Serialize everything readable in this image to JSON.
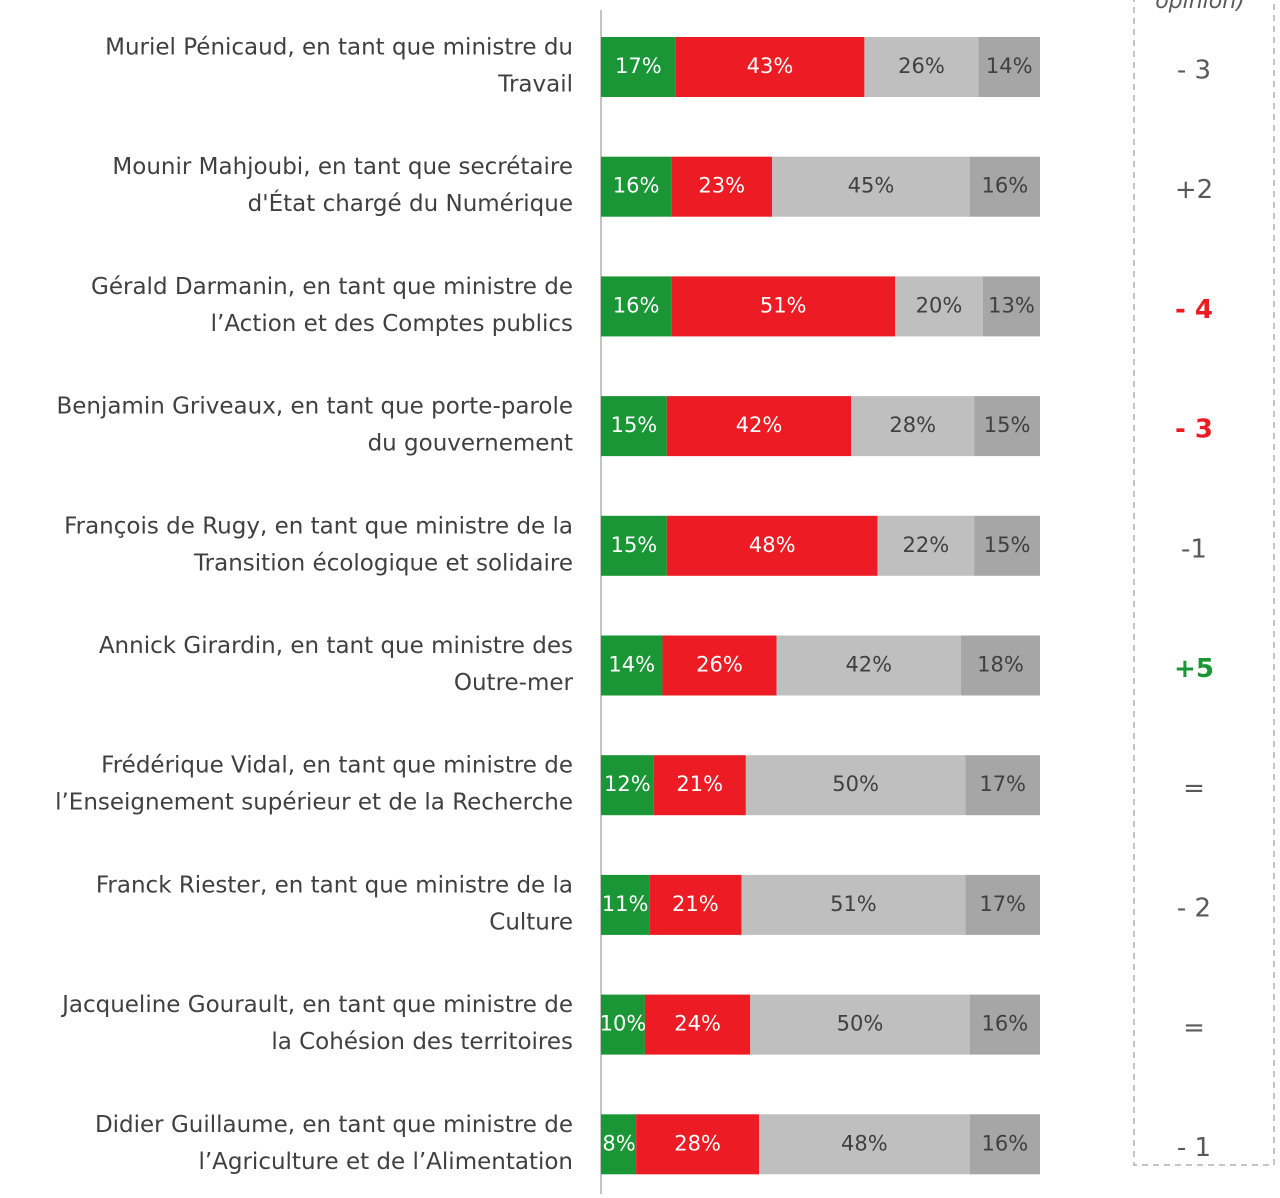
{
  "chart_data": {
    "type": "stacked-bar-horizontal",
    "header": "opinion)",
    "categories": [
      [
        "Muriel Pénicaud, en tant que ministre du",
        "Travail"
      ],
      [
        "Mounir Mahjoubi, en tant que secrétaire",
        "d'État chargé du Numérique"
      ],
      [
        "Gérald Darmanin, en tant que ministre de",
        "l’Action et des Comptes publics"
      ],
      [
        "Benjamin Griveaux, en tant que porte-parole",
        "du gouvernement"
      ],
      [
        "François de Rugy, en tant que ministre de la",
        "Transition écologique et solidaire"
      ],
      [
        "Annick Girardin, en tant que ministre des",
        "Outre-mer"
      ],
      [
        "Frédérique Vidal, en tant que ministre de",
        "l’Enseignement supérieur et de la Recherche"
      ],
      [
        "Franck Riester, en tant que ministre de la",
        "Culture"
      ],
      [
        "Jacqueline Gourault, en tant que ministre de",
        "la Cohésion des territoires"
      ],
      [
        "Didier Guillaume, en tant que ministre de",
        "l’Agriculture et de l’Alimentation"
      ]
    ],
    "series": [
      {
        "color": "#1a9636",
        "label_color": "#ffffff",
        "values": [
          17,
          16,
          16,
          15,
          15,
          14,
          12,
          11,
          10,
          8
        ],
        "value_labels": [
          "17%",
          "16%",
          "16%",
          "15%",
          "15%",
          "14%",
          "12%",
          "11%",
          "10%",
          "8%"
        ]
      },
      {
        "color": "#ed1c24",
        "label_color": "#ffffff",
        "values": [
          43,
          23,
          51,
          42,
          48,
          26,
          21,
          21,
          24,
          28
        ],
        "value_labels": [
          "43%",
          "23%",
          "51%",
          "42%",
          "48%",
          "26%",
          "21%",
          "21%",
          "24%",
          "28%"
        ]
      },
      {
        "color": "#bfbfbf",
        "label_color": "#404040",
        "values": [
          26,
          45,
          20,
          28,
          22,
          42,
          50,
          51,
          50,
          48
        ],
        "value_labels": [
          "26%",
          "45%",
          "20%",
          "28%",
          "22%",
          "42%",
          "50%",
          "51%",
          "50%",
          "48%"
        ]
      },
      {
        "color": "#a6a6a6",
        "label_color": "#404040",
        "values": [
          14,
          16,
          13,
          15,
          15,
          18,
          17,
          17,
          16,
          16
        ],
        "value_labels": [
          "14%",
          "16%",
          "13%",
          "15%",
          "15%",
          "18%",
          "17%",
          "17%",
          "16%",
          "16%"
        ]
      }
    ],
    "xlim": [
      0,
      100
    ],
    "changes": [
      "- 3",
      "+2",
      "- 4",
      "- 3",
      "-1",
      "+5",
      "=",
      "- 2",
      "=",
      "- 1"
    ],
    "change_colors": [
      "#595959",
      "#595959",
      "#ed1c24",
      "#ed1c24",
      "#595959",
      "#1a9636",
      "#595959",
      "#595959",
      "#595959",
      "#595959"
    ],
    "change_bold": [
      false,
      false,
      true,
      true,
      false,
      true,
      false,
      false,
      false,
      false
    ]
  }
}
